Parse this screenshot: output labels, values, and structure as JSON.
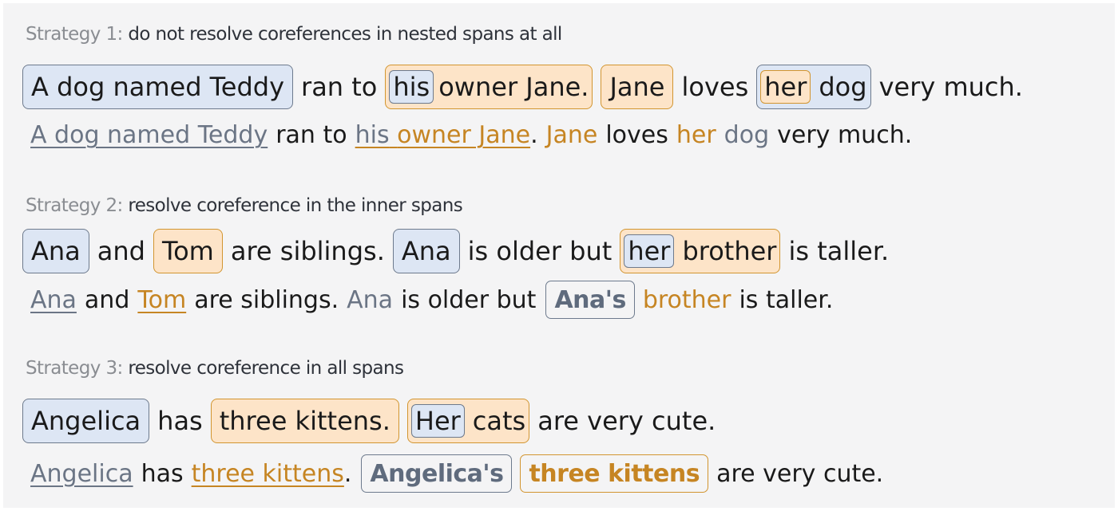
{
  "strategies": [
    {
      "label": "Strategy 1:",
      "desc": "do not resolve coreferences in nested spans at all",
      "input": {
        "e1": "A dog named Teddy",
        "t1": "ran to",
        "e2_inner": "his",
        "e2_rest": "owner Jane.",
        "e3": "Jane",
        "t2": "loves",
        "e4_inner": "her",
        "e4_rest": "dog",
        "t3": "very much."
      },
      "output": {
        "e1": "A dog named Teddy",
        "t1": "ran to",
        "his": "his",
        "owner": "owner Jane",
        "dot": ".",
        "jane": "Jane",
        "t2": "loves",
        "her": "her",
        "dog": "dog",
        "t3": "very much."
      }
    },
    {
      "label": "Strategy 2:",
      "desc": "resolve coreference in the inner spans",
      "input": {
        "e1": "Ana",
        "t1": "and",
        "e2": "Tom",
        "t2": "are siblings.",
        "e3": "Ana",
        "t3": "is older but",
        "e4_inner": "her",
        "e4_rest": "brother",
        "t4": "is taller."
      },
      "output": {
        "e1": "Ana",
        "t1": "and",
        "e2": "Tom",
        "t2": "are siblings.",
        "e3": "Ana",
        "t3": "is older but",
        "e4_box": "Ana's",
        "e4_rest": "brother",
        "t4": "is taller."
      }
    },
    {
      "label": "Strategy 3:",
      "desc": "resolve coreference in all spans",
      "input": {
        "e1": "Angelica",
        "t1": "has",
        "e2": "three kittens.",
        "e3_inner": "Her",
        "e3_rest": "cats",
        "t2": "are very cute."
      },
      "output": {
        "e1": "Angelica",
        "t1": "has",
        "e2": "three kittens",
        "dot": ".",
        "box1": "Angelica's",
        "box2": "three kittens",
        "t2": "are very cute."
      }
    }
  ],
  "colors": {
    "entity_blue": "#6b7585",
    "entity_orange": "#c68523",
    "box_blue_fill": "#dde6f4",
    "box_orange_fill": "#fde4c8"
  }
}
